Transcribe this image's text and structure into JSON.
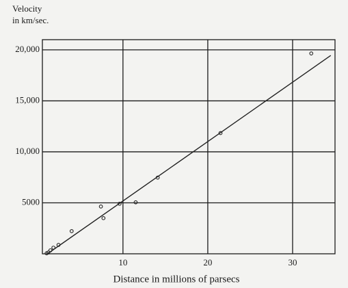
{
  "chart_data": {
    "type": "scatter",
    "ylabel": [
      "Velocity",
      "in km/sec."
    ],
    "xlabel": "Distance in millions of parsecs",
    "x": [
      32.2,
      21.5,
      14.1,
      11.5,
      9.6,
      7.4,
      7.7,
      3.95,
      2.4,
      1.8,
      1.45,
      1.2,
      1.0
    ],
    "values": [
      19650,
      11840,
      7470,
      5050,
      4910,
      4640,
      3500,
      2220,
      870,
      600,
      340,
      130,
      50
    ],
    "fit": {
      "x": [
        1.1,
        34.5
      ],
      "values": [
        0,
        19450
      ]
    },
    "color": "#222222",
    "xlim": [
      0.5,
      35
    ],
    "xticks": [
      10,
      20,
      30
    ],
    "ylim": [
      0,
      21000
    ],
    "yticks": [
      {
        "value": 5000,
        "label": "5000"
      },
      {
        "value": 10000,
        "label": "10,000"
      },
      {
        "value": 15000,
        "label": "15,000"
      },
      {
        "value": 20000,
        "label": "20,000"
      }
    ],
    "grid": true
  }
}
